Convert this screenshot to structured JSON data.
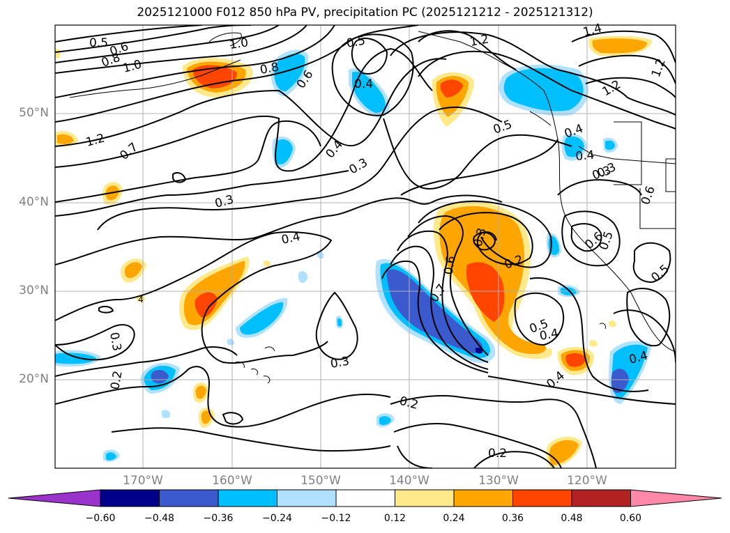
{
  "title": "2025121000 F012 850 hPa PV, precipitation PC (2025121212 - 2025121312)",
  "map": {
    "lat_labels": [
      "50°N",
      "40°N",
      "30°N",
      "20°N"
    ],
    "lon_labels": [
      "170°W",
      "160°W",
      "150°W",
      "140°W",
      "130°W",
      "120°W"
    ],
    "contour_labels": [
      {
        "text": "0.5",
        "key": "a"
      },
      {
        "text": "0.6",
        "key": "b"
      },
      {
        "text": "0.8",
        "key": "c"
      },
      {
        "text": "1.0",
        "key": "d"
      },
      {
        "text": "1.0",
        "key": "e"
      },
      {
        "text": "1.2",
        "key": "f"
      },
      {
        "text": "0.7",
        "key": "g"
      },
      {
        "text": "0.8",
        "key": "h"
      },
      {
        "text": "0.6",
        "key": "i"
      },
      {
        "text": "0.5",
        "key": "j"
      },
      {
        "text": "0.4",
        "key": "k"
      },
      {
        "text": "0.4",
        "key": "l"
      },
      {
        "text": "0.3",
        "key": "m"
      },
      {
        "text": "0.3",
        "key": "n"
      },
      {
        "text": "0.4",
        "key": "o"
      },
      {
        "text": "0.3",
        "key": "p"
      },
      {
        "text": "0.3",
        "key": "q"
      },
      {
        "text": "0.7",
        "key": "r"
      },
      {
        "text": "0.6",
        "key": "s"
      },
      {
        "text": "0.3",
        "key": "t"
      },
      {
        "text": "0.2",
        "key": "u"
      },
      {
        "text": "0.5",
        "key": "v"
      },
      {
        "text": "0.4",
        "key": "w"
      },
      {
        "text": "0.4",
        "key": "x"
      },
      {
        "text": "0.2",
        "key": "y"
      },
      {
        "text": "0.2",
        "key": "z"
      },
      {
        "text": "0.5",
        "key": "aa"
      },
      {
        "text": "0.6",
        "key": "ab"
      },
      {
        "text": "0.5",
        "key": "ac"
      },
      {
        "text": "0.3",
        "key": "ad"
      },
      {
        "text": "0.4",
        "key": "ae"
      },
      {
        "text": "1.4",
        "key": "af"
      },
      {
        "text": "1.2",
        "key": "ag"
      },
      {
        "text": "1.2",
        "key": "ah"
      },
      {
        "text": "1.2",
        "key": "ai"
      },
      {
        "text": "0.4",
        "key": "aj"
      },
      {
        "text": "0.3",
        "key": "ak"
      },
      {
        "text": "0.4",
        "key": "al"
      },
      {
        "text": "0.5",
        "key": "am"
      },
      {
        "text": "0.6",
        "key": "an"
      },
      {
        "text": "0.2",
        "key": "ao"
      },
      {
        "text": "4",
        "key": "ap"
      }
    ],
    "colors": {
      "neg_060": "#9933cc",
      "neg_048": "#00008b",
      "neg_036": "#3a5acd",
      "neg_024": "#00bfff",
      "neg_012": "#b0e2ff",
      "zero": "#ffffff",
      "pos_012": "#ffe98a",
      "pos_024": "#ffa500",
      "pos_036": "#ff4500",
      "pos_048": "#b22222",
      "pos_060": "#ff88a8"
    }
  },
  "colorbar": {
    "ticks": [
      "−0.60",
      "−0.48",
      "−0.36",
      "−0.24",
      "−0.12",
      "0.12",
      "0.24",
      "0.36",
      "0.48",
      "0.60"
    ]
  }
}
